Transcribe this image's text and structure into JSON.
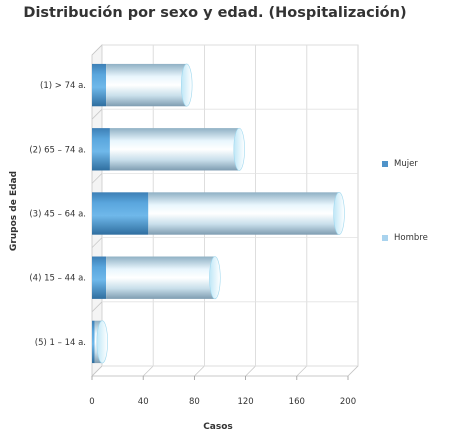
{
  "chart_data": {
    "type": "bar",
    "orientation": "horizontal",
    "stacked": true,
    "style": "3d-cylinder",
    "title": "Distribución por sexo y edad. (Hospitalización)",
    "xlabel": "Casos",
    "ylabel": "Grupos de Edad",
    "xlim": [
      0,
      200
    ],
    "xticks": [
      "0",
      "40",
      "80",
      "120",
      "160",
      "200"
    ],
    "grid": true,
    "legend_position": "right",
    "categories": [
      "(1) > 74 a.",
      "(2) 65 – 74 a.",
      "(3) 45 – 64 a.",
      "(4) 15 – 44 a.",
      "(5) 1 – 14 a."
    ],
    "series": [
      {
        "name": "Mujer",
        "values": [
          11,
          14,
          44,
          11,
          2
        ],
        "color": "#4f93c9"
      },
      {
        "name": "Hombre",
        "values": [
          63,
          101,
          149,
          85,
          6
        ],
        "color": "#a9d3ee"
      }
    ]
  }
}
